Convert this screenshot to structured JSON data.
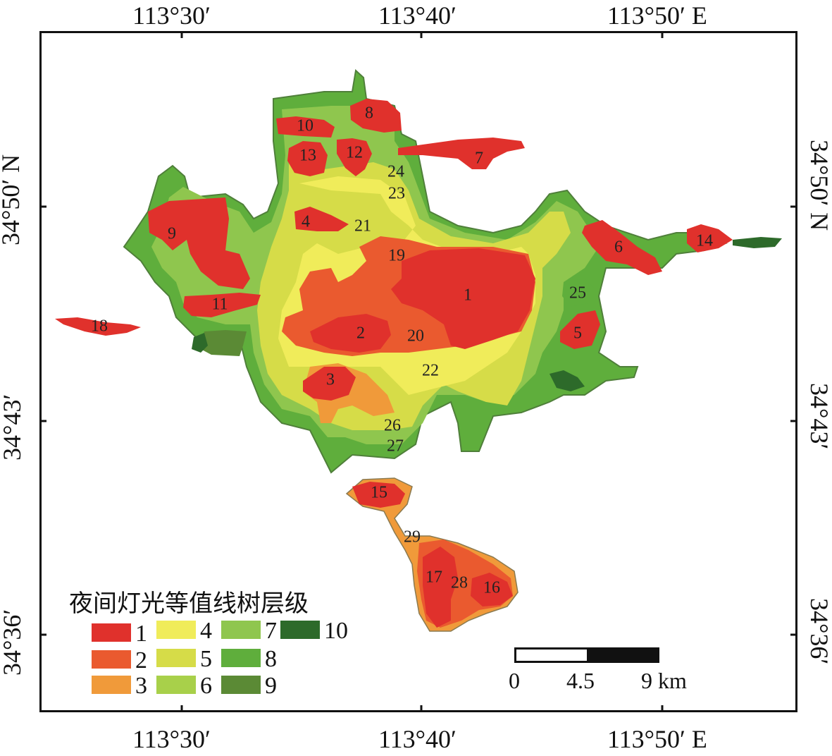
{
  "lon_labels": [
    "113°30′",
    "113°40′",
    "113°50′  E"
  ],
  "lat_labels": [
    "34°50′  N",
    "34°43′",
    "34°36′"
  ],
  "legend": {
    "title": "夜间灯光等值线树层级",
    "items": [
      {
        "label": "1",
        "color": "#e0312c"
      },
      {
        "label": "2",
        "color": "#ea5a2f"
      },
      {
        "label": "3",
        "color": "#f09a3a"
      },
      {
        "label": "4",
        "color": "#f0ec5a"
      },
      {
        "label": "5",
        "color": "#d6dc48"
      },
      {
        "label": "6",
        "color": "#a8d04a"
      },
      {
        "label": "7",
        "color": "#8fc64e"
      },
      {
        "label": "8",
        "color": "#5fae3c"
      },
      {
        "label": "9",
        "color": "#5b8a35"
      },
      {
        "label": "10",
        "color": "#2d6a2a"
      }
    ]
  },
  "scale_bar": {
    "labels": [
      "0",
      "4.5",
      "9 km"
    ]
  },
  "region_labels": [
    "1",
    "2",
    "3",
    "4",
    "5",
    "6",
    "7",
    "8",
    "9",
    "10",
    "11",
    "12",
    "13",
    "14",
    "15",
    "16",
    "17",
    "18",
    "19",
    "20",
    "21",
    "22",
    "23",
    "24",
    "25",
    "26",
    "27",
    "28",
    "29"
  ]
}
